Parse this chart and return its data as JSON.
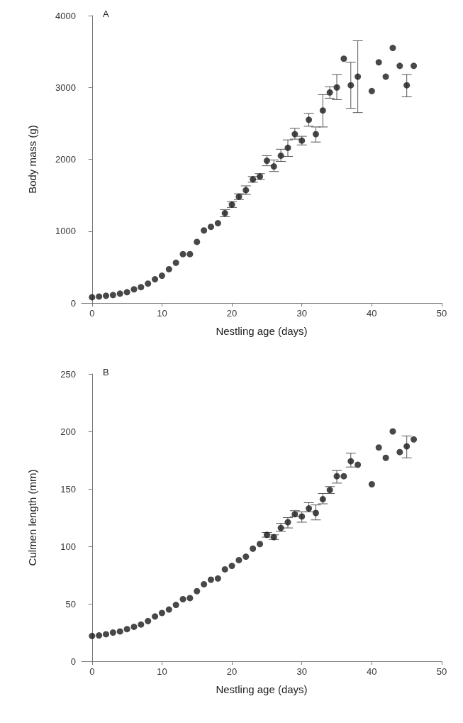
{
  "chart_data": [
    {
      "type": "scatter",
      "title": "A",
      "xlabel": "Nestling age (days)",
      "ylabel": "Body mass (g)",
      "marker": "circle",
      "grid": false,
      "xlim": [
        -1.5,
        50
      ],
      "xticks": [
        0,
        10,
        20,
        30,
        40,
        50
      ],
      "ylim": [
        0,
        4000
      ],
      "yticks": [
        0,
        1000,
        2000,
        3000,
        4000
      ],
      "series": [
        {
          "color": "#1a1a1a",
          "x": [
            0,
            1,
            2,
            3,
            4,
            5,
            6,
            7,
            8,
            9,
            10,
            11,
            12,
            13,
            14,
            15,
            16,
            17,
            18,
            19,
            20,
            21,
            22,
            23,
            24,
            25,
            26,
            27,
            28,
            29,
            30,
            31,
            32,
            33,
            34,
            35,
            36,
            37,
            38,
            40,
            41,
            42,
            43,
            44,
            45,
            46
          ],
          "values": [
            80,
            90,
            100,
            110,
            130,
            150,
            190,
            220,
            270,
            330,
            380,
            470,
            560,
            680,
            680,
            850,
            1010,
            1060,
            1110,
            1250,
            1370,
            1480,
            1570,
            1720,
            1760,
            1980,
            1900,
            2050,
            2160,
            2350,
            2260,
            2550,
            2350,
            2680,
            2930,
            3000,
            3400,
            3030,
            3150,
            2950,
            3350,
            3150,
            3550,
            3300,
            3030,
            3300
          ],
          "errors": [
            null,
            null,
            null,
            null,
            null,
            null,
            null,
            null,
            null,
            null,
            null,
            null,
            null,
            null,
            null,
            null,
            null,
            null,
            null,
            50,
            40,
            40,
            60,
            40,
            40,
            [
              1910,
              2050
            ],
            [
              1830,
              1990
            ],
            [
              1970,
              2140
            ],
            [
              2040,
              2270
            ],
            [
              2280,
              2430
            ],
            [
              2200,
              2320
            ],
            [
              2460,
              2640
            ],
            [
              2240,
              2450
            ],
            [
              2450,
              2900
            ],
            [
              2850,
              3010
            ],
            [
              2830,
              3180
            ],
            null,
            [
              2710,
              3350
            ],
            [
              2650,
              3650
            ],
            null,
            null,
            null,
            null,
            null,
            [
              2870,
              3180
            ],
            null
          ]
        }
      ]
    },
    {
      "type": "scatter",
      "title": "B",
      "xlabel": "Nestling age (days)",
      "ylabel": "Culmen length (mm)",
      "marker": "circle",
      "grid": false,
      "xlim": [
        -1.5,
        50
      ],
      "xticks": [
        0,
        10,
        20,
        30,
        40,
        50
      ],
      "ylim": [
        0,
        250
      ],
      "yticks": [
        0,
        50,
        100,
        150,
        200,
        250
      ],
      "series": [
        {
          "color": "#1a1a1a",
          "x": [
            0,
            1,
            2,
            3,
            4,
            5,
            6,
            7,
            8,
            9,
            10,
            11,
            12,
            13,
            14,
            15,
            16,
            17,
            18,
            19,
            20,
            21,
            22,
            23,
            24,
            25,
            26,
            27,
            28,
            29,
            30,
            31,
            32,
            33,
            34,
            35,
            36,
            37,
            38,
            40,
            41,
            42,
            43,
            44,
            45,
            46
          ],
          "values": [
            22,
            22.5,
            23.5,
            25,
            26,
            28,
            30,
            32,
            35,
            39,
            42,
            45,
            49,
            54,
            55,
            61,
            67,
            71,
            72,
            80,
            83,
            88,
            91,
            98,
            102,
            110,
            108,
            116,
            121,
            128,
            126,
            133,
            129,
            141,
            149,
            161,
            161,
            174,
            171,
            154,
            186,
            177,
            200,
            182,
            187,
            193
          ],
          "errors": [
            null,
            null,
            null,
            null,
            null,
            null,
            null,
            null,
            null,
            null,
            null,
            null,
            null,
            null,
            null,
            null,
            null,
            null,
            null,
            null,
            null,
            null,
            null,
            null,
            null,
            2,
            2,
            [
              113,
              120
            ],
            [
              116,
              125
            ],
            [
              126,
              131
            ],
            [
              121,
              130
            ],
            [
              130,
              138
            ],
            [
              123,
              136
            ],
            [
              137,
              146
            ],
            [
              146,
              152
            ],
            [
              155,
              166
            ],
            null,
            [
              169,
              181
            ],
            null,
            null,
            null,
            null,
            null,
            null,
            [
              177,
              196
            ],
            null
          ]
        }
      ]
    }
  ]
}
